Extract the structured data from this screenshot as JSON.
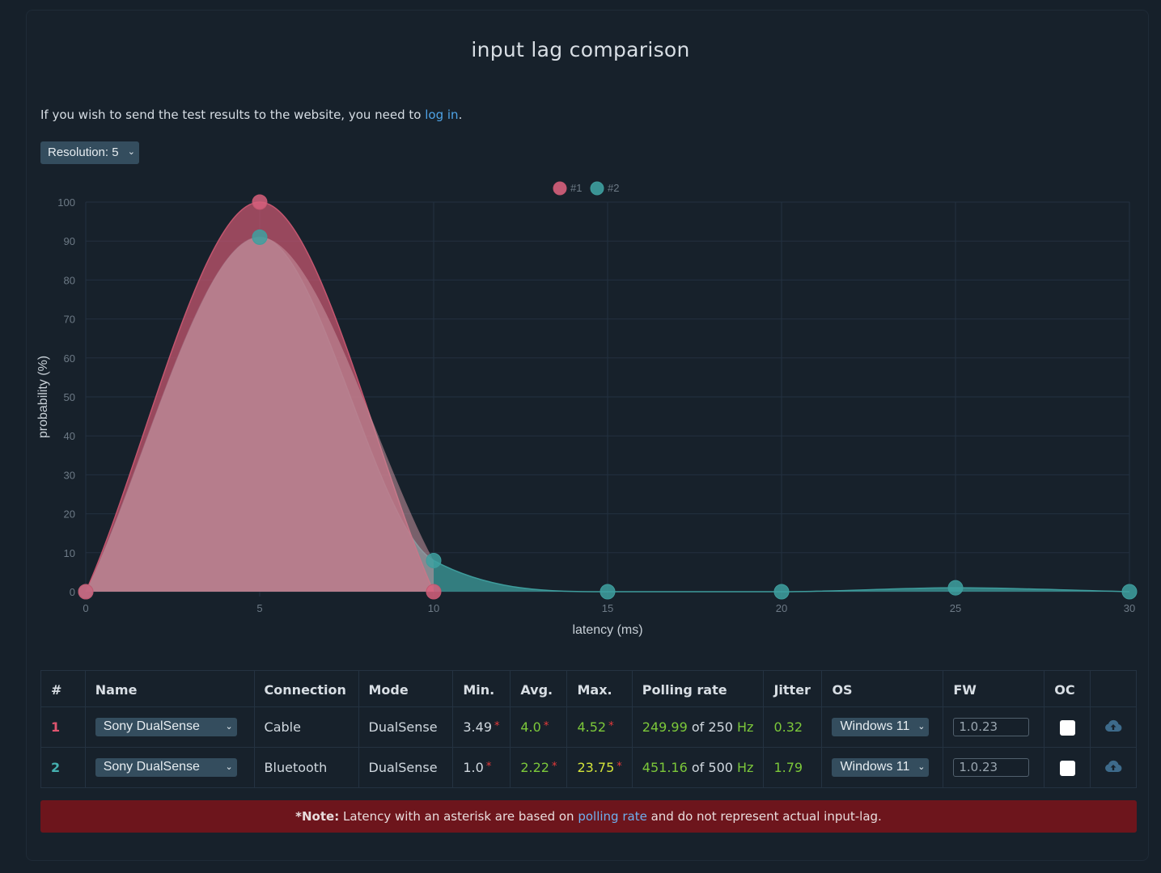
{
  "page": {
    "title": "input lag comparison",
    "info_text": "If you wish to send the test results to the website, you need to ",
    "info_link": "log in",
    "info_end": ".",
    "resolution_select": "Resolution: 5"
  },
  "colors": {
    "series1": "#c4566f",
    "series2": "#3e9c9c",
    "grid": "#233140",
    "axis_text": "#6d7a86"
  },
  "chart_data": {
    "type": "area",
    "xlabel": "latency (ms)",
    "ylabel": "probability (%)",
    "xlim": [
      0,
      30
    ],
    "ylim": [
      0,
      100
    ],
    "xticks": [
      0,
      5,
      10,
      15,
      20,
      25,
      30
    ],
    "yticks": [
      0,
      10,
      20,
      30,
      40,
      50,
      60,
      70,
      80,
      90,
      100
    ],
    "legend_position": "top-center",
    "series": [
      {
        "name": "#1",
        "x": [
          0,
          5,
          10
        ],
        "y": [
          0,
          100,
          0
        ]
      },
      {
        "name": "#2",
        "x": [
          0,
          5,
          10,
          15,
          20,
          25,
          30
        ],
        "y": [
          0,
          91,
          8,
          0,
          0,
          1,
          0
        ]
      }
    ]
  },
  "table": {
    "headers": [
      "#",
      "Name",
      "Connection",
      "Mode",
      "Min.",
      "Avg.",
      "Max.",
      "Polling rate",
      "Jitter",
      "OS",
      "FW",
      "OC",
      ""
    ],
    "rows": [
      {
        "num": "1",
        "name": "Sony DualSense",
        "connection": "Cable",
        "mode": "DualSense",
        "min": "3.49",
        "avg": "4.0",
        "max": "4.52",
        "asterisk": "*",
        "polling_value": "249.99",
        "polling_of": "of 250",
        "polling_unit": "Hz",
        "jitter": "0.32",
        "os": "Windows 11",
        "fw": "1.0.23"
      },
      {
        "num": "2",
        "name": "Sony DualSense",
        "connection": "Bluetooth",
        "mode": "DualSense",
        "min": "1.0",
        "avg": "2.22",
        "max": "23.75",
        "asterisk": "*",
        "polling_value": "451.16",
        "polling_of": "of 500",
        "polling_unit": "Hz",
        "jitter": "1.79",
        "os": "Windows 11",
        "fw": "1.0.23"
      }
    ]
  },
  "note": {
    "bold": "*Note:",
    "text1": " Latency with an asterisk are based on ",
    "link": "polling rate",
    "text2": " and do not represent actual input-lag."
  }
}
